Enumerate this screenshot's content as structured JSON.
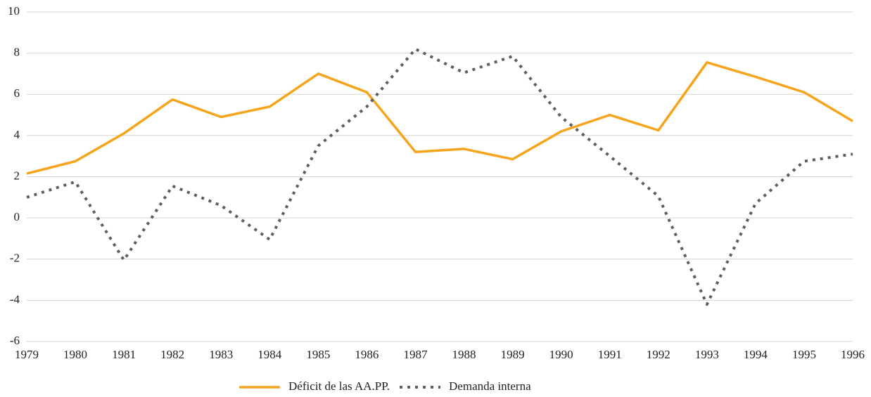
{
  "chart_data": {
    "type": "line",
    "categories": [
      "1979",
      "1980",
      "1981",
      "1982",
      "1983",
      "1984",
      "1985",
      "1986",
      "1987",
      "1988",
      "1989",
      "1990",
      "1991",
      "1992",
      "1993",
      "1994",
      "1995",
      "1996"
    ],
    "series": [
      {
        "name": "Déficit de las AA.PP.",
        "color": "#f5a41c",
        "style": "solid",
        "values": [
          2.15,
          2.75,
          4.1,
          5.75,
          4.9,
          5.4,
          7.0,
          6.1,
          3.2,
          3.35,
          2.85,
          4.2,
          5.0,
          4.25,
          7.55,
          6.85,
          6.1,
          4.7
        ]
      },
      {
        "name": "Demanda interna",
        "color": "#5f5f5f",
        "style": "dotted",
        "values": [
          1.0,
          1.75,
          -2.05,
          1.55,
          0.6,
          -1.05,
          3.5,
          5.4,
          8.2,
          7.05,
          7.85,
          4.9,
          3.0,
          1.05,
          -4.2,
          0.7,
          2.75,
          3.1
        ]
      }
    ],
    "ylim": [
      -6,
      10
    ],
    "yticks": [
      -6,
      -4,
      -2,
      0,
      2,
      4,
      6,
      8,
      10
    ],
    "grid": true,
    "legend": "bottom"
  }
}
